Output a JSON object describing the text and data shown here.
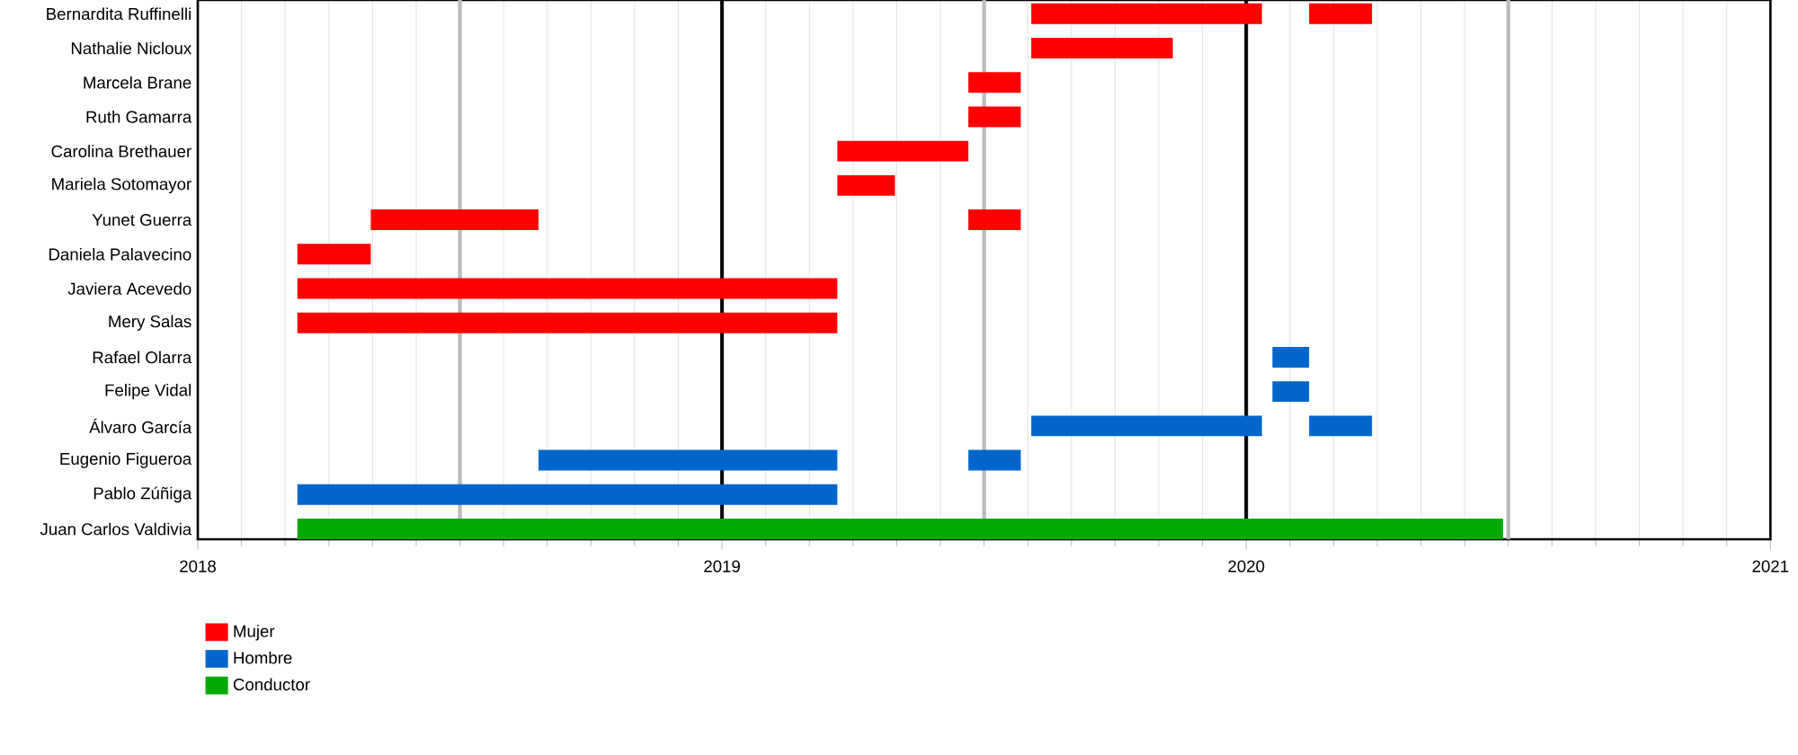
{
  "chart_data": {
    "type": "bar",
    "orientation": "horizontal",
    "categories": [
      "Bernardita Ruffinelli",
      "Nathalie Nicloux",
      "Marcela Brane",
      "Ruth Gamarra",
      "Carolina Brethauer",
      "Mariela Sotomayor",
      "Yunet Guerra",
      "Daniela Palavecino",
      "Javiera Acevedo",
      "Mery Salas",
      "Rafael Olarra",
      "Felipe Vidal",
      "Álvaro García",
      "Eugenio Figueroa",
      "Pablo Zúñiga",
      "Juan Carlos Valdivia"
    ],
    "series": [
      {
        "name": "Mujer",
        "color": "#ff0000",
        "base": [
          2019.59,
          2019.59,
          2019.47,
          2019.47,
          2019.22,
          2019.22,
          2018.33,
          2018.19,
          2018.19,
          2018.19,
          null,
          null,
          null,
          null,
          null,
          null
        ],
        "values": [
          0.44,
          0.27,
          0.1,
          0.1,
          0.25,
          0.11,
          0.32,
          0.14,
          1.03,
          1.03,
          null,
          null,
          null,
          null,
          null,
          null
        ]
      },
      {
        "color": "#ff0000",
        "base": [
          2020.12,
          null,
          null,
          null,
          null,
          null,
          2019.47,
          null,
          null,
          null,
          null,
          null,
          null,
          null,
          null,
          null
        ],
        "values": [
          0.12,
          null,
          null,
          null,
          null,
          null,
          0.1,
          null,
          null,
          null,
          null,
          null,
          null,
          null,
          null,
          null
        ]
      },
      {
        "name": "Hombre",
        "color": "#0066cc",
        "base": [
          null,
          null,
          null,
          null,
          null,
          null,
          null,
          null,
          null,
          null,
          2020.05,
          2020.05,
          2019.59,
          2018.65,
          2018.19,
          null
        ],
        "values": [
          null,
          null,
          null,
          null,
          null,
          null,
          null,
          null,
          null,
          null,
          0.07,
          0.07,
          0.44,
          0.57,
          1.03,
          null
        ]
      },
      {
        "color": "#0066cc",
        "base": [
          null,
          null,
          null,
          null,
          null,
          null,
          null,
          null,
          null,
          null,
          null,
          null,
          2020.12,
          2019.47,
          null,
          null
        ],
        "values": [
          null,
          null,
          null,
          null,
          null,
          null,
          null,
          null,
          null,
          null,
          null,
          null,
          0.12,
          0.1,
          null,
          null
        ]
      },
      {
        "name": "Conductor",
        "color": "#00aa00",
        "base": [
          null,
          null,
          null,
          null,
          null,
          null,
          null,
          null,
          null,
          null,
          null,
          null,
          null,
          null,
          null,
          2018.19
        ],
        "values": [
          null,
          null,
          null,
          null,
          null,
          null,
          null,
          null,
          null,
          null,
          null,
          null,
          null,
          null,
          null,
          2.3
        ]
      }
    ],
    "xlim": [
      2018,
      2021
    ],
    "xticks": [
      2018,
      2019,
      2020,
      2021
    ],
    "grid": "x",
    "legend": "bottom left",
    "ref_lines": [
      {
        "axis": "x",
        "value": 2018.5,
        "color": "#bbbbbb"
      },
      {
        "axis": "x",
        "value": 2019,
        "color": "#000000"
      },
      {
        "axis": "x",
        "value": 2019.5,
        "color": "#bbbbbb"
      },
      {
        "axis": "x",
        "value": 2020,
        "color": "#000000"
      },
      {
        "axis": "x",
        "value": 2020.5,
        "color": "#bbbbbb"
      }
    ]
  }
}
